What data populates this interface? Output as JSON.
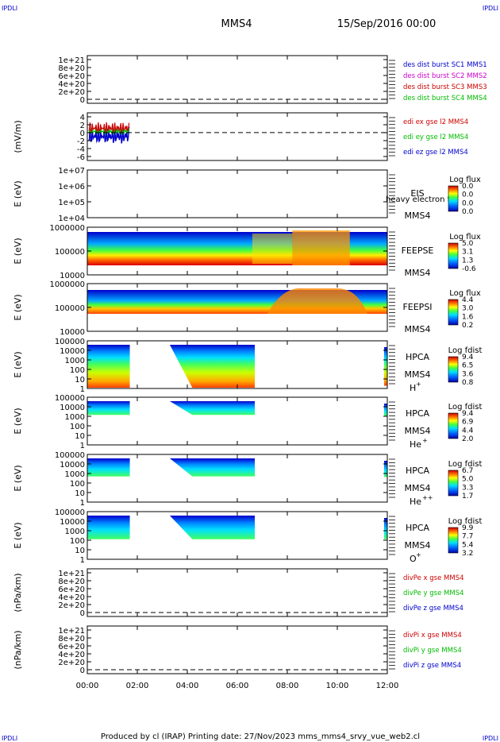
{
  "header": {
    "corner_tl": "IPDLI",
    "corner_tr": "IPDLI",
    "spacecraft": "MMS4",
    "date": "15/Sep/2016 00:00",
    "corner_bl": "IPDLI",
    "corner_br": "IPDLI",
    "footer": "Produced by cl (IRAP)   Printing date: 27/Nov/2023   mms_mms4_srvy_vue_web2.cl"
  },
  "chart_data": [
    {
      "type": "line",
      "ylabel": "",
      "yticks": [
        "1e+21",
        "8e+20",
        "6e+20",
        "4e+20",
        "2e+20",
        "0"
      ],
      "ylim": [
        0,
        1.2e+21
      ],
      "xlim": [
        0,
        12
      ],
      "legend": [
        "des dist burst SC1 MMS1",
        "des dist burst SC2 MMS2",
        "des dist burst SC3 MMS3",
        "des dist burst SC4 MMS4"
      ],
      "legend_colors": [
        "#0000cc",
        "#cc00cc",
        "#cc0000",
        "#00bb00"
      ],
      "dashed_zero": true
    },
    {
      "type": "line",
      "ylabel": "(mV/m)",
      "yticks": [
        "4",
        "2",
        "0",
        "-2",
        "-4",
        "-6"
      ],
      "ylim": [
        -7,
        5
      ],
      "xlim": [
        0,
        12
      ],
      "legend": [
        "edi ex gse l2 MMS4",
        "edi ey gse l2 MMS4",
        "edi ez gse l2 MMS4"
      ],
      "legend_colors": [
        "#cc0000",
        "#00bb00",
        "#0000cc"
      ],
      "data_extent_hours": [
        0,
        1.7
      ],
      "dashed_zero": true
    },
    {
      "type": "heatmap",
      "ylabel": "E (eV)",
      "yticks": [
        "1e+07",
        "1e+06",
        "1e+05",
        "1e+04"
      ],
      "yscale": "log",
      "xlim": [
        0,
        12
      ],
      "instrument": "EIS",
      "spacecraft": "MMS4",
      "overlay": "heavy electron tof",
      "colorbar_title": "Log flux",
      "colorbar_ticks": [
        "0.0",
        "0.0",
        "0.0",
        "0.0"
      ]
    },
    {
      "type": "heatmap",
      "ylabel": "E (eV)",
      "yticks": [
        "1000000",
        "100000",
        "10000"
      ],
      "yscale": "log",
      "xlim": [
        0,
        12
      ],
      "instrument": "FEEPSE",
      "spacecraft": "MMS4",
      "colorbar_title": "Log flux",
      "colorbar_ticks": [
        "5.0",
        "3.1",
        "1.3",
        "-0.6"
      ]
    },
    {
      "type": "heatmap",
      "ylabel": "E (eV)",
      "yticks": [
        "1000000",
        "100000",
        "10000"
      ],
      "yscale": "log",
      "xlim": [
        0,
        12
      ],
      "instrument": "FEEPSI",
      "spacecraft": "MMS4",
      "colorbar_title": "Log flux",
      "colorbar_ticks": [
        "4.4",
        "3.0",
        "1.6",
        "0.2"
      ]
    },
    {
      "type": "heatmap",
      "ylabel": "E (eV)",
      "yticks": [
        "100000",
        "10000",
        "1000",
        "100",
        "10",
        "1"
      ],
      "yscale": "log",
      "xlim": [
        0,
        12
      ],
      "instrument": "HPCA",
      "spacecraft": "MMS4",
      "species": "H",
      "species_charge": "+",
      "colorbar_title": "Log fdist",
      "colorbar_ticks": [
        "9.4",
        "6.5",
        "3.6",
        "0.8"
      ]
    },
    {
      "type": "heatmap",
      "ylabel": "E (eV)",
      "yticks": [
        "100000",
        "10000",
        "1000",
        "100",
        "10",
        "1"
      ],
      "yscale": "log",
      "xlim": [
        0,
        12
      ],
      "instrument": "HPCA",
      "spacecraft": "MMS4",
      "species": "He",
      "species_charge": "+",
      "colorbar_title": "Log fdist",
      "colorbar_ticks": [
        "9.4",
        "6.9",
        "4.4",
        "2.0"
      ]
    },
    {
      "type": "heatmap",
      "ylabel": "E (eV)",
      "yticks": [
        "100000",
        "10000",
        "1000",
        "100",
        "10",
        "1"
      ],
      "yscale": "log",
      "xlim": [
        0,
        12
      ],
      "instrument": "HPCA",
      "spacecraft": "MMS4",
      "species": "He",
      "species_charge": "++",
      "colorbar_title": "Log fdist",
      "colorbar_ticks": [
        "6.7",
        "5.0",
        "3.3",
        "1.7"
      ]
    },
    {
      "type": "heatmap",
      "ylabel": "E (eV)",
      "yticks": [
        "100000",
        "10000",
        "1000",
        "100",
        "10",
        "1"
      ],
      "yscale": "log",
      "xlim": [
        0,
        12
      ],
      "instrument": "HPCA",
      "spacecraft": "MMS4",
      "species": "O",
      "species_charge": "+",
      "colorbar_title": "Log fdist",
      "colorbar_ticks": [
        "9.9",
        "7.7",
        "5.4",
        "3.2"
      ]
    },
    {
      "type": "line",
      "ylabel": "(nPa/km)",
      "yticks": [
        "1e+21",
        "8e+20",
        "6e+20",
        "4e+20",
        "2e+20",
        "0"
      ],
      "ylim": [
        0,
        1.2e+21
      ],
      "xlim": [
        0,
        12
      ],
      "legend": [
        "divPe x gse MMS4",
        "divPe y gse MMS4",
        "divPe z gse MMS4"
      ],
      "legend_colors": [
        "#cc0000",
        "#00bb00",
        "#0000cc"
      ],
      "dashed_zero": true
    },
    {
      "type": "line",
      "ylabel": "(nPa/km)",
      "yticks": [
        "1e+21",
        "8e+20",
        "6e+20",
        "4e+20",
        "2e+20",
        "0"
      ],
      "ylim": [
        0,
        1.2e+21
      ],
      "xlim": [
        0,
        12
      ],
      "legend": [
        "divPi x gse MMS4",
        "divPi y gse MMS4",
        "divPi z gse MMS4"
      ],
      "legend_colors": [
        "#cc0000",
        "#00bb00",
        "#0000cc"
      ],
      "dashed_zero": true
    }
  ],
  "x_axis": {
    "ticks": [
      "00:00",
      "02:00",
      "04:00",
      "06:00",
      "08:00",
      "10:00",
      "12:00"
    ],
    "xlim": [
      0,
      12
    ]
  }
}
